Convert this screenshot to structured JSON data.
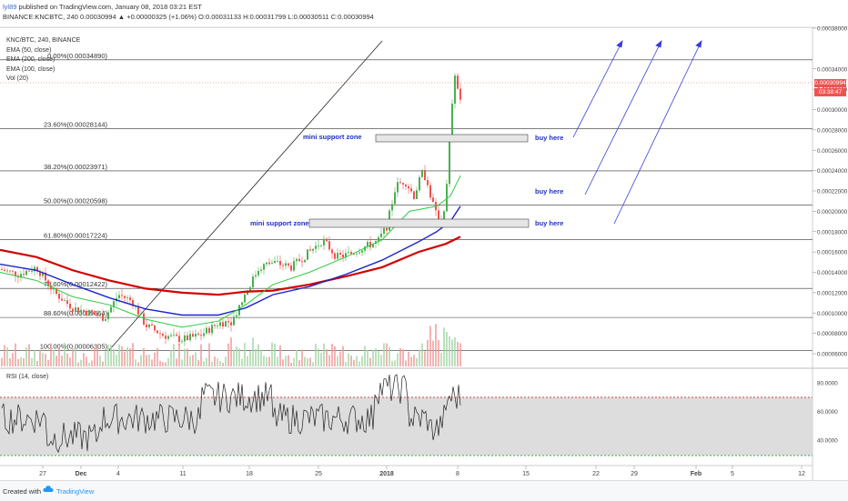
{
  "header": {
    "author": "lyl89",
    "published": "published on TradingView.com, January 08, 2018 03:21 EST",
    "symbol_line": "BINANCE:KNCBTC, 240  0.00030994 ▲ +0.00000325 (+1.06%) O:0.00031133 H:0.00031799 L:0.00030511 C:0.00030994"
  },
  "legend": {
    "title": "KNC/BTC, 240, BINANCE",
    "ema50": "EMA (50, close)",
    "ema200": "EMA (200, close)",
    "ema100": "EMA (100, close)",
    "vol": "Vol (20)"
  },
  "fib_levels": [
    {
      "label": "0.00%(0.00034890)",
      "value": 0.0003489
    },
    {
      "label": "23.60%(0.00028144)",
      "value": 0.00028144
    },
    {
      "label": "38.20%(0.00023971)",
      "value": 0.00023971
    },
    {
      "label": "50.00%(0.00020598)",
      "value": 0.00020598
    },
    {
      "label": "61.80%(0.00017224)",
      "value": 0.00017224
    },
    {
      "label": "78.60%(0.00012422)",
      "value": 0.00012422
    },
    {
      "label": "88.60%(0.00009564)",
      "value": 9.564e-05
    },
    {
      "label": "100.00%(0.00006305)",
      "value": 6.305e-05
    }
  ],
  "annotations": {
    "support_upper": "mini support zone",
    "support_lower": "mini support zone",
    "buy1": "buy here",
    "buy2": "buy here",
    "buy3": "buy here"
  },
  "price_axis": {
    "ticks": [
      "0.00038000",
      "0.00034000",
      "0.00032000",
      "0.00030000",
      "0.00028000",
      "0.00026000",
      "0.00024000",
      "0.00022000",
      "0.00020000",
      "0.00018000",
      "0.00016000",
      "0.00014000",
      "0.00012000",
      "0.00010000",
      "0.00008000",
      "0.00006000"
    ],
    "current_price": "0.00030994",
    "countdown": "03:38:47"
  },
  "rsi": {
    "legend": "RSI (14, close)",
    "ticks": [
      "80.0000",
      "60.0000",
      "40.0000"
    ]
  },
  "time_axis": [
    "27",
    "Dec",
    "4",
    "11",
    "18",
    "25",
    "2018",
    "8",
    "15",
    "22",
    "29",
    "Feb",
    "5",
    "12"
  ],
  "footer": {
    "created": "Created with",
    "brand": "TradingView"
  },
  "colors": {
    "ema50": "#2ecc40",
    "ema100": "#1a26c8",
    "ema200": "#d40000",
    "candle_up": "#4caf50",
    "candle_down": "#ef5350",
    "price_tag": "#ef5350",
    "annotation": "#1f2fbf"
  }
}
